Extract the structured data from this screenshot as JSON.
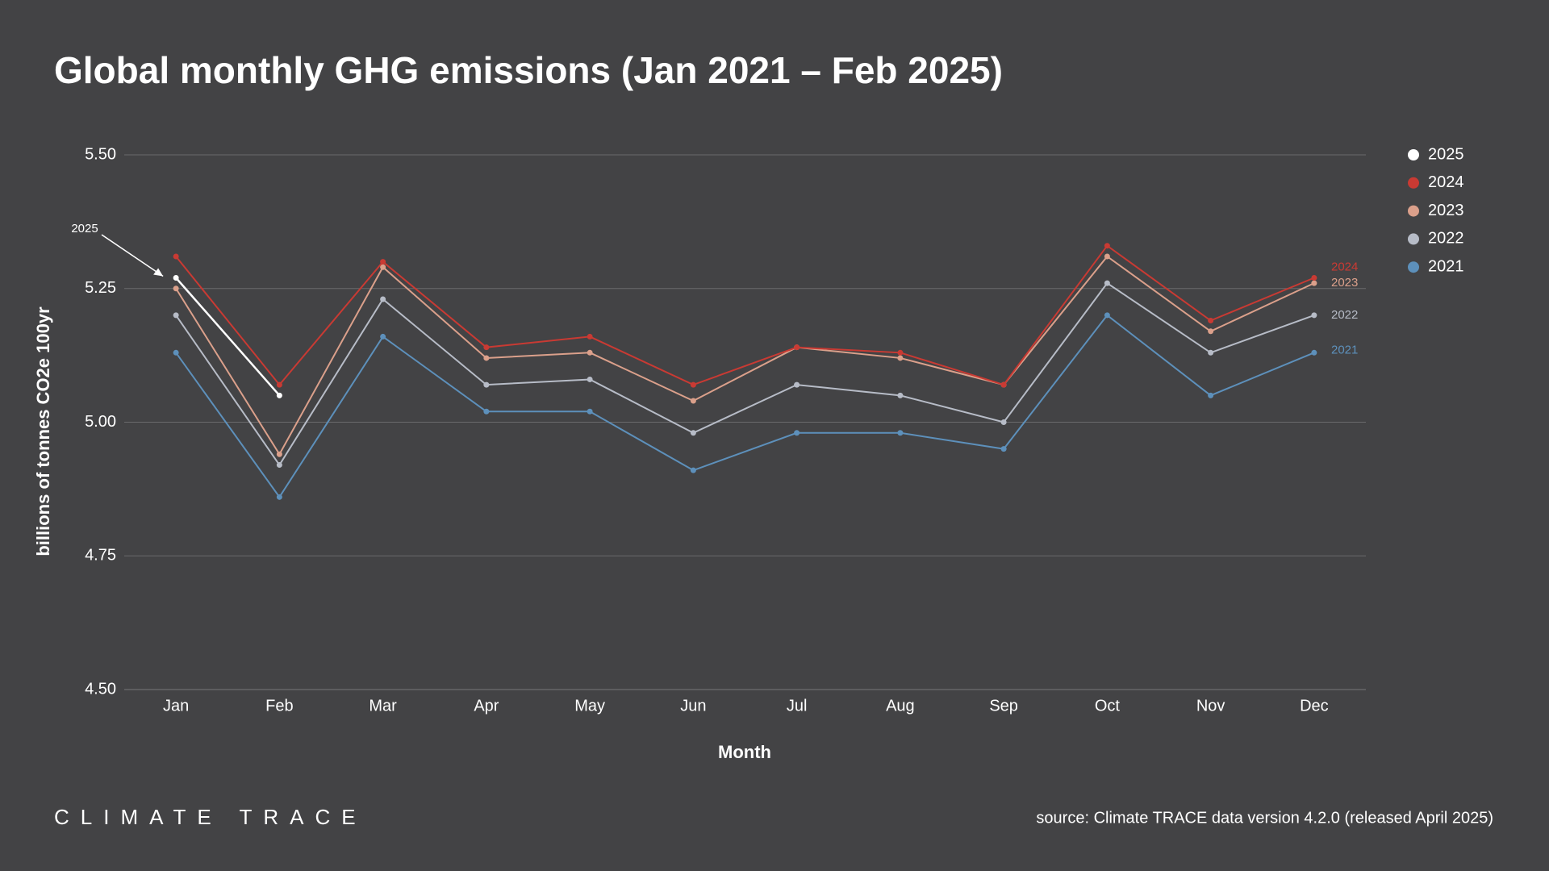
{
  "chart_data": {
    "type": "line",
    "title": "Global monthly GHG emissions (Jan 2021 – Feb 2025)",
    "x_label": "Month",
    "y_label": "billions of tonnes CO2e 100yr",
    "categories": [
      "Jan",
      "Feb",
      "Mar",
      "Apr",
      "May",
      "Jun",
      "Jul",
      "Aug",
      "Sep",
      "Oct",
      "Nov",
      "Dec"
    ],
    "series": [
      {
        "name": "2025",
        "color": "#ffffff",
        "values": [
          5.27,
          5.05,
          null,
          null,
          null,
          null,
          null,
          null,
          null,
          null,
          null,
          null
        ]
      },
      {
        "name": "2024",
        "color": "#c93a33",
        "values": [
          5.31,
          5.07,
          5.3,
          5.14,
          5.16,
          5.07,
          5.14,
          5.13,
          5.07,
          5.33,
          5.19,
          5.27
        ]
      },
      {
        "name": "2023",
        "color": "#dba08b",
        "values": [
          5.25,
          4.94,
          5.29,
          5.12,
          5.13,
          5.04,
          5.14,
          5.12,
          5.07,
          5.31,
          5.17,
          5.26
        ]
      },
      {
        "name": "2022",
        "color": "#b7bcc7",
        "values": [
          5.2,
          4.92,
          5.23,
          5.07,
          5.08,
          4.98,
          5.07,
          5.05,
          5.0,
          5.26,
          5.13,
          5.2
        ]
      },
      {
        "name": "2021",
        "color": "#5d90bb",
        "values": [
          5.13,
          4.86,
          5.16,
          5.02,
          5.02,
          4.91,
          4.98,
          4.98,
          4.95,
          5.2,
          5.05,
          5.13
        ]
      }
    ],
    "ylim": [
      4.5,
      5.5
    ],
    "yticks": [
      {
        "value": 4.5,
        "label": "4.50"
      },
      4.75,
      {
        "value": 5,
        "label": "5.00"
      },
      5.25,
      {
        "value": 5.5,
        "label": "5.50"
      }
    ],
    "grid": true,
    "legend": "right",
    "brand": "CLIMATE TRACE",
    "source": "source: Climate TRACE data version 4.2.0 (released April 2025)"
  }
}
